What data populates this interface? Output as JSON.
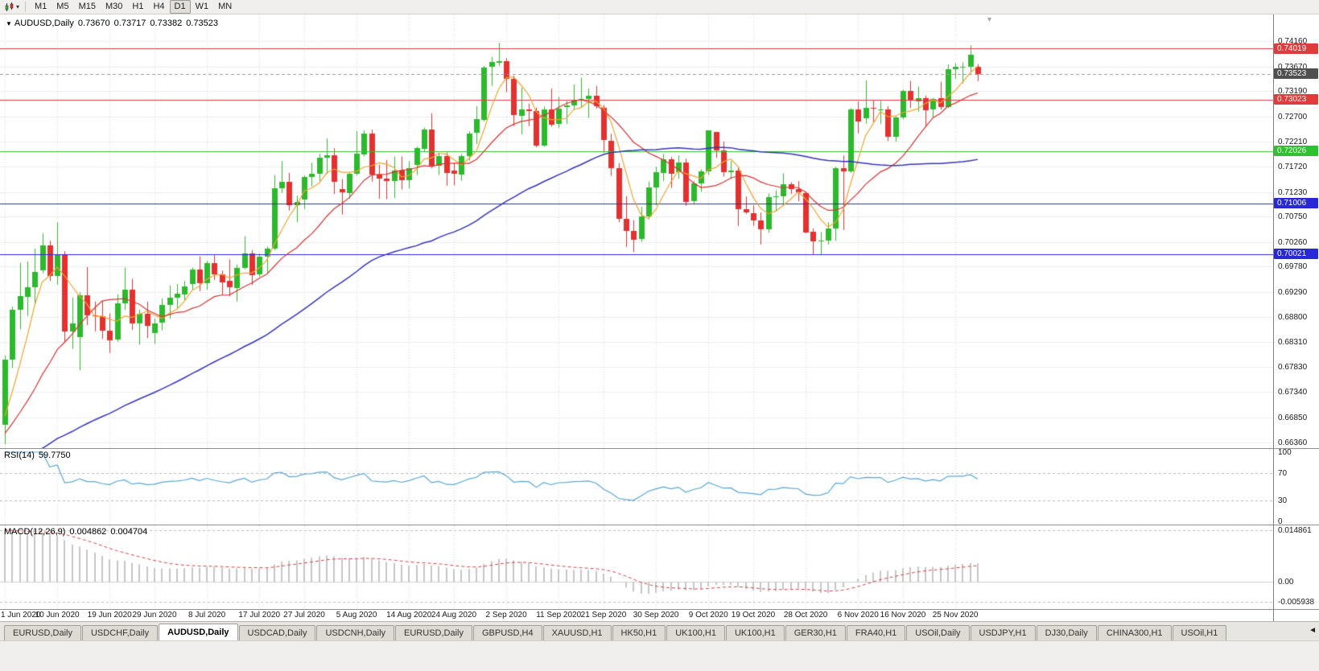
{
  "toolbar": {
    "chart_type_icon": "candlestick-chart-icon",
    "dropdown_icon": "▾",
    "timeframes": [
      {
        "label": "M1",
        "active": false
      },
      {
        "label": "M5",
        "active": false
      },
      {
        "label": "M15",
        "active": false
      },
      {
        "label": "M30",
        "active": false
      },
      {
        "label": "H1",
        "active": false
      },
      {
        "label": "H4",
        "active": false
      },
      {
        "label": "D1",
        "active": true
      },
      {
        "label": "W1",
        "active": false
      },
      {
        "label": "MN",
        "active": false
      }
    ]
  },
  "chart": {
    "legend": {
      "collapse_icon": "▼",
      "symbol": "AUDUSD,Daily",
      "open": "0.73670",
      "high": "0.73717",
      "low": "0.73382",
      "close": "0.73523"
    },
    "price_axis": [
      "0.74160",
      "0.73670",
      "0.73190",
      "0.72700",
      "0.72210",
      "0.71720",
      "0.71230",
      "0.70750",
      "0.70260",
      "0.69780",
      "0.69290",
      "0.68800",
      "0.68310",
      "0.67830",
      "0.67340",
      "0.66850",
      "0.66360"
    ],
    "price_tags": [
      {
        "value": "0.74019",
        "price": 0.74019,
        "bg": "#e23b3b",
        "fg": "#ffffff"
      },
      {
        "value": "0.73523",
        "price": 0.73523,
        "bg": "#4f4f4f",
        "fg": "#ffffff"
      },
      {
        "value": "0.73023",
        "price": 0.73023,
        "bg": "#e23b3b",
        "fg": "#ffffff"
      },
      {
        "value": "0.72026",
        "price": 0.72026,
        "bg": "#2fc12f",
        "fg": "#ffffff"
      },
      {
        "value": "0.71006",
        "price": 0.71006,
        "bg": "#2828d8",
        "fg": "#ffffff"
      },
      {
        "value": "0.70021",
        "price": 0.70021,
        "bg": "#2828d8",
        "fg": "#ffffff"
      }
    ]
  },
  "chart_data": {
    "type": "candlestick",
    "symbol": "AUDUSD",
    "timeframe": "Daily",
    "quote": {
      "open": 0.7367,
      "high": 0.73717,
      "low": 0.73382,
      "close": 0.73523
    },
    "up_color": "#2db92d",
    "down_color": "#e53030",
    "price_range": {
      "min": 0.6625,
      "max": 0.7468
    },
    "date_ticks": [
      {
        "i": 0,
        "label": "1 Jun 2020"
      },
      {
        "i": 7,
        "label": "10 Jun 2020"
      },
      {
        "i": 14,
        "label": "19 Jun 2020"
      },
      {
        "i": 20,
        "label": "29 Jun 2020"
      },
      {
        "i": 27,
        "label": "8 Jul 2020"
      },
      {
        "i": 34,
        "label": "17 Jul 2020"
      },
      {
        "i": 40,
        "label": "27 Jul 2020"
      },
      {
        "i": 47,
        "label": "5 Aug 2020"
      },
      {
        "i": 54,
        "label": "14 Aug 2020"
      },
      {
        "i": 60,
        "label": "24 Aug 2020"
      },
      {
        "i": 67,
        "label": "2 Sep 2020"
      },
      {
        "i": 74,
        "label": "11 Sep 2020"
      },
      {
        "i": 80,
        "label": "21 Sep 2020"
      },
      {
        "i": 87,
        "label": "30 Sep 2020"
      },
      {
        "i": 94,
        "label": "9 Oct 2020"
      },
      {
        "i": 100,
        "label": "19 Oct 2020"
      },
      {
        "i": 107,
        "label": "28 Oct 2020"
      },
      {
        "i": 114,
        "label": "6 Nov 2020"
      },
      {
        "i": 120,
        "label": "16 Nov 2020"
      },
      {
        "i": 127,
        "label": "25 Nov 2020"
      }
    ],
    "ohlc": [
      [
        0.667,
        0.6805,
        0.6633,
        0.6797
      ],
      [
        0.6797,
        0.69,
        0.6781,
        0.6894
      ],
      [
        0.6894,
        0.6985,
        0.6856,
        0.692
      ],
      [
        0.692,
        0.6988,
        0.6882,
        0.6938
      ],
      [
        0.6938,
        0.7013,
        0.6906,
        0.6968
      ],
      [
        0.697,
        0.7043,
        0.6965,
        0.7019
      ],
      [
        0.7019,
        0.7028,
        0.695,
        0.6959
      ],
      [
        0.6959,
        0.7064,
        0.6943,
        0.7
      ],
      [
        0.7,
        0.7008,
        0.6832,
        0.6852
      ],
      [
        0.6852,
        0.6918,
        0.6818,
        0.6867
      ],
      [
        0.684,
        0.6928,
        0.6776,
        0.6922
      ],
      [
        0.6922,
        0.6977,
        0.6864,
        0.6883
      ],
      [
        0.6883,
        0.691,
        0.6852,
        0.6882
      ],
      [
        0.6882,
        0.6911,
        0.6837,
        0.6854
      ],
      [
        0.6854,
        0.6887,
        0.681,
        0.6835
      ],
      [
        0.6835,
        0.6924,
        0.6832,
        0.6906
      ],
      [
        0.6906,
        0.6976,
        0.6894,
        0.6933
      ],
      [
        0.6933,
        0.6954,
        0.6855,
        0.6867
      ],
      [
        0.6867,
        0.6894,
        0.6826,
        0.6886
      ],
      [
        0.6886,
        0.691,
        0.6839,
        0.6863
      ],
      [
        0.685,
        0.6877,
        0.6828,
        0.6868
      ],
      [
        0.6868,
        0.6916,
        0.6854,
        0.6903
      ],
      [
        0.6903,
        0.6941,
        0.6877,
        0.6917
      ],
      [
        0.6917,
        0.6944,
        0.6896,
        0.6925
      ],
      [
        0.6925,
        0.695,
        0.6912,
        0.694
      ],
      [
        0.6944,
        0.6976,
        0.6932,
        0.6972
      ],
      [
        0.6972,
        0.6998,
        0.693,
        0.6946
      ],
      [
        0.6946,
        0.6989,
        0.6933,
        0.6985
      ],
      [
        0.6985,
        0.7,
        0.6952,
        0.6963
      ],
      [
        0.6963,
        0.697,
        0.6922,
        0.6948
      ],
      [
        0.695,
        0.6992,
        0.692,
        0.6937
      ],
      [
        0.6937,
        0.6982,
        0.691,
        0.6976
      ],
      [
        0.6976,
        0.7037,
        0.6973,
        0.7004
      ],
      [
        0.7004,
        0.701,
        0.6942,
        0.6962
      ],
      [
        0.6962,
        0.7003,
        0.6958,
        0.6997
      ],
      [
        0.6997,
        0.7017,
        0.6965,
        0.7013
      ],
      [
        0.7013,
        0.7156,
        0.701,
        0.713
      ],
      [
        0.713,
        0.7183,
        0.7121,
        0.7142
      ],
      [
        0.7142,
        0.716,
        0.7087,
        0.7097
      ],
      [
        0.7097,
        0.7116,
        0.7064,
        0.7104
      ],
      [
        0.7108,
        0.7155,
        0.709,
        0.7152
      ],
      [
        0.7152,
        0.718,
        0.7134,
        0.7158
      ],
      [
        0.7158,
        0.7197,
        0.7144,
        0.719
      ],
      [
        0.719,
        0.7227,
        0.7158,
        0.7195
      ],
      [
        0.7195,
        0.7208,
        0.7119,
        0.7143
      ],
      [
        0.7128,
        0.7148,
        0.7079,
        0.7121
      ],
      [
        0.7121,
        0.716,
        0.711,
        0.7158
      ],
      [
        0.7158,
        0.7241,
        0.7155,
        0.7197
      ],
      [
        0.7197,
        0.7243,
        0.7192,
        0.7237
      ],
      [
        0.7237,
        0.7244,
        0.7143,
        0.7157
      ],
      [
        0.7157,
        0.7176,
        0.711,
        0.7149
      ],
      [
        0.7149,
        0.7185,
        0.7109,
        0.7144
      ],
      [
        0.7144,
        0.7192,
        0.7111,
        0.7165
      ],
      [
        0.7165,
        0.7192,
        0.7128,
        0.7147
      ],
      [
        0.7147,
        0.7183,
        0.713,
        0.717
      ],
      [
        0.7175,
        0.7211,
        0.7156,
        0.7208
      ],
      [
        0.7208,
        0.7248,
        0.7201,
        0.7245
      ],
      [
        0.7245,
        0.7276,
        0.7169,
        0.7175
      ],
      [
        0.7175,
        0.7199,
        0.7156,
        0.7193
      ],
      [
        0.7193,
        0.72,
        0.7135,
        0.716
      ],
      [
        0.7164,
        0.718,
        0.7136,
        0.7157
      ],
      [
        0.7157,
        0.7197,
        0.7145,
        0.7193
      ],
      [
        0.7193,
        0.7241,
        0.7184,
        0.7237
      ],
      [
        0.7237,
        0.729,
        0.7216,
        0.7264
      ],
      [
        0.7264,
        0.7368,
        0.726,
        0.7365
      ],
      [
        0.7365,
        0.7385,
        0.7329,
        0.7375
      ],
      [
        0.7375,
        0.7413,
        0.7368,
        0.7378
      ],
      [
        0.7378,
        0.7383,
        0.7317,
        0.7343
      ],
      [
        0.7343,
        0.7349,
        0.7251,
        0.7272
      ],
      [
        0.7272,
        0.7326,
        0.7235,
        0.7284
      ],
      [
        0.7284,
        0.7295,
        0.7251,
        0.7281
      ],
      [
        0.7281,
        0.7287,
        0.721,
        0.7214
      ],
      [
        0.7214,
        0.7289,
        0.7211,
        0.7284
      ],
      [
        0.7284,
        0.7324,
        0.725,
        0.7255
      ],
      [
        0.7255,
        0.7308,
        0.7248,
        0.7285
      ],
      [
        0.7288,
        0.73,
        0.7255,
        0.7291
      ],
      [
        0.7291,
        0.7332,
        0.7283,
        0.7301
      ],
      [
        0.7301,
        0.7345,
        0.7286,
        0.7304
      ],
      [
        0.7304,
        0.7324,
        0.7267,
        0.731
      ],
      [
        0.731,
        0.7329,
        0.7285,
        0.729
      ],
      [
        0.7286,
        0.7292,
        0.7199,
        0.7223
      ],
      [
        0.7223,
        0.7236,
        0.7154,
        0.717
      ],
      [
        0.717,
        0.7179,
        0.7064,
        0.7071
      ],
      [
        0.7071,
        0.7115,
        0.7016,
        0.7048
      ],
      [
        0.7048,
        0.7068,
        0.7006,
        0.7031
      ],
      [
        0.7031,
        0.7094,
        0.7026,
        0.7075
      ],
      [
        0.7075,
        0.7143,
        0.707,
        0.7131
      ],
      [
        0.7131,
        0.7172,
        0.7097,
        0.7161
      ],
      [
        0.7161,
        0.7197,
        0.7144,
        0.7187
      ],
      [
        0.7187,
        0.7191,
        0.7131,
        0.7159
      ],
      [
        0.7163,
        0.7194,
        0.7149,
        0.7181
      ],
      [
        0.7181,
        0.7188,
        0.7096,
        0.7105
      ],
      [
        0.7105,
        0.7144,
        0.71,
        0.7139
      ],
      [
        0.7139,
        0.7167,
        0.7123,
        0.7163
      ],
      [
        0.7163,
        0.7243,
        0.7156,
        0.7243
      ],
      [
        0.7239,
        0.724,
        0.7189,
        0.7203
      ],
      [
        0.7203,
        0.7221,
        0.7153,
        0.7161
      ],
      [
        0.7161,
        0.7183,
        0.7148,
        0.7164
      ],
      [
        0.7164,
        0.717,
        0.7057,
        0.7089
      ],
      [
        0.7089,
        0.7114,
        0.708,
        0.7082
      ],
      [
        0.7082,
        0.7097,
        0.7057,
        0.7068
      ],
      [
        0.7068,
        0.7083,
        0.7021,
        0.7051
      ],
      [
        0.7051,
        0.712,
        0.7044,
        0.7113
      ],
      [
        0.7113,
        0.7126,
        0.7085,
        0.7115
      ],
      [
        0.7115,
        0.7159,
        0.7096,
        0.7138
      ],
      [
        0.7138,
        0.7142,
        0.7119,
        0.7128
      ],
      [
        0.7128,
        0.7144,
        0.7105,
        0.7121
      ],
      [
        0.7121,
        0.7123,
        0.7043,
        0.7045
      ],
      [
        0.7045,
        0.7052,
        0.7002,
        0.7027
      ],
      [
        0.7027,
        0.7045,
        0.7,
        0.7028
      ],
      [
        0.7028,
        0.7064,
        0.7021,
        0.7052
      ],
      [
        0.7052,
        0.7172,
        0.7028,
        0.717
      ],
      [
        0.717,
        0.7194,
        0.7049,
        0.7163
      ],
      [
        0.7163,
        0.7286,
        0.716,
        0.7283
      ],
      [
        0.7283,
        0.7299,
        0.7237,
        0.726
      ],
      [
        0.7266,
        0.734,
        0.7256,
        0.7286
      ],
      [
        0.7286,
        0.7302,
        0.7259,
        0.7284
      ],
      [
        0.7284,
        0.73,
        0.7255,
        0.7284
      ],
      [
        0.7284,
        0.729,
        0.7222,
        0.7231
      ],
      [
        0.7231,
        0.727,
        0.7221,
        0.7268
      ],
      [
        0.7268,
        0.7322,
        0.7264,
        0.7319
      ],
      [
        0.7319,
        0.7339,
        0.7286,
        0.73
      ],
      [
        0.73,
        0.7328,
        0.7279,
        0.7306
      ],
      [
        0.7306,
        0.731,
        0.725,
        0.7282
      ],
      [
        0.7282,
        0.7306,
        0.7267,
        0.7303
      ],
      [
        0.7306,
        0.7337,
        0.7283,
        0.7289
      ],
      [
        0.7289,
        0.7371,
        0.7286,
        0.7362
      ],
      [
        0.7362,
        0.7373,
        0.7343,
        0.7366
      ],
      [
        0.7366,
        0.7375,
        0.7334,
        0.7366
      ],
      [
        0.7366,
        0.7408,
        0.7355,
        0.739
      ],
      [
        0.7367,
        0.73717,
        0.73382,
        0.73523
      ]
    ],
    "horizontal_lines": [
      {
        "price": 0.74019,
        "color": "#e23b3b"
      },
      {
        "price": 0.73023,
        "color": "#e23b3b"
      },
      {
        "price": 0.72026,
        "color": "#2fc12f"
      },
      {
        "price": 0.71006,
        "color": "#2828d8"
      },
      {
        "price": 0.70021,
        "color": "#2828d8"
      }
    ],
    "current_price": {
      "price": 0.73523,
      "color": "#9a9a9a"
    },
    "moving_averages": [
      {
        "period": 5,
        "color": "#efa42f",
        "name": "ma-fast"
      },
      {
        "period": 14,
        "color": "#d93333",
        "name": "ma-medium"
      },
      {
        "period": 50,
        "color": "#3434be",
        "name": "ma-slow"
      }
    ],
    "rsi": {
      "label": "RSI(14)",
      "value": "59.7750",
      "period": 14,
      "color": "#57a7d7",
      "levels": [
        100,
        70,
        30,
        0
      ],
      "dashed_levels": [
        70,
        30
      ]
    },
    "macd": {
      "label": "MACD(12,26,9)",
      "macd_value": "0.004862",
      "signal_value": "0.004704",
      "fast": 12,
      "slow": 26,
      "signal": 9,
      "hist_color": "#c6c6c6",
      "signal_color": "#d74040",
      "axis_labels": [
        "0.014861",
        "0.00",
        "-0.005938"
      ],
      "range": {
        "min": -0.0063,
        "max": 0.0152
      }
    }
  },
  "tabs": {
    "items": [
      {
        "label": "EURUSD,Daily",
        "active": false
      },
      {
        "label": "USDCHF,Daily",
        "active": false
      },
      {
        "label": "AUDUSD,Daily",
        "active": true
      },
      {
        "label": "USDCAD,Daily",
        "active": false
      },
      {
        "label": "USDCNH,Daily",
        "active": false
      },
      {
        "label": "EURUSD,Daily",
        "active": false
      },
      {
        "label": "GBPUSD,H4",
        "active": false
      },
      {
        "label": "XAUUSD,H1",
        "active": false
      },
      {
        "label": "HK50,H1",
        "active": false
      },
      {
        "label": "UK100,H1",
        "active": false
      },
      {
        "label": "UK100,H1",
        "active": false
      },
      {
        "label": "GER30,H1",
        "active": false
      },
      {
        "label": "FRA40,H1",
        "active": false
      },
      {
        "label": "USOil,Daily",
        "active": false
      },
      {
        "label": "USDJPY,H1",
        "active": false
      },
      {
        "label": "DJ30,Daily",
        "active": false
      },
      {
        "label": "CHINA300,H1",
        "active": false
      },
      {
        "label": "USOil,H1",
        "active": false
      }
    ],
    "scroll_left_icon": "◄"
  }
}
